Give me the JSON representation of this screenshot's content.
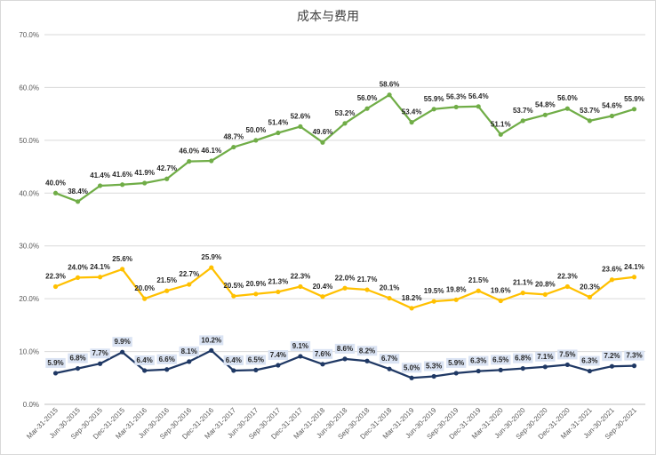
{
  "chart_data": {
    "type": "line",
    "title": "成本与费用",
    "xlabel": "",
    "ylabel": "",
    "ylim": [
      0,
      70
    ],
    "y_ticks": [
      "0.0%",
      "10.0%",
      "20.0%",
      "30.0%",
      "40.0%",
      "50.0%",
      "60.0%",
      "70.0%"
    ],
    "grid": true,
    "legend": "none",
    "categories": [
      "Mar-31-2015",
      "Jun-30-2015",
      "Sep-30-2015",
      "Dec-31-2015",
      "Mar-31-2016",
      "Jun-30-2016",
      "Sep-30-2016",
      "Dec-31-2016",
      "Mar-31-2017",
      "Jun-30-2017",
      "Sep-30-2017",
      "Dec-31-2017",
      "Mar-31-2018",
      "Jun-30-2018",
      "Sep-30-2018",
      "Dec-31-2018",
      "Mar-31-2019",
      "Jun-30-2019",
      "Sep-30-2019",
      "Dec-31-2019",
      "Mar-31-2020",
      "Jun-30-2020",
      "Sep-30-2020",
      "Dec-31-2020",
      "Mar-31-2021",
      "Jun-30-2021",
      "Sep-30-2021"
    ],
    "series": [
      {
        "color": "#70ad47",
        "values": [
          40.0,
          38.4,
          41.4,
          41.6,
          41.9,
          42.7,
          46.0,
          46.1,
          48.7,
          50.0,
          51.4,
          52.6,
          49.6,
          53.2,
          56.0,
          58.6,
          53.4,
          55.9,
          56.3,
          56.4,
          51.1,
          53.7,
          54.8,
          56.0,
          53.7,
          54.6,
          55.9
        ],
        "labels": [
          "40.0%",
          "38.4%",
          "41.4%",
          "41.6%",
          "41.9%",
          "42.7%",
          "46.0%",
          "46.1%",
          "48.7%",
          "50.0%",
          "51.4%",
          "52.6%",
          "49.6%",
          "53.2%",
          "56.0%",
          "58.6%",
          "53.4%",
          "55.9%",
          "56.3%",
          "56.4%",
          "51.1%",
          "53.7%",
          "54.8%",
          "56.0%",
          "53.7%",
          "54.6%",
          "55.9%"
        ]
      },
      {
        "color": "#ffc000",
        "values": [
          22.3,
          24.0,
          24.1,
          25.6,
          20.0,
          21.5,
          22.7,
          25.9,
          20.5,
          20.9,
          21.3,
          22.3,
          20.4,
          22.0,
          21.7,
          20.1,
          18.2,
          19.5,
          19.8,
          21.5,
          19.6,
          21.1,
          20.8,
          22.3,
          20.3,
          23.6,
          24.1
        ],
        "labels": [
          "22.3%",
          "24.0%",
          "24.1%",
          "25.6%",
          "20.0%",
          "21.5%",
          "22.7%",
          "25.9%",
          "20.5%",
          "20.9%",
          "21.3%",
          "22.3%",
          "20.4%",
          "22.0%",
          "21.7%",
          "20.1%",
          "18.2%",
          "19.5%",
          "19.8%",
          "21.5%",
          "19.6%",
          "21.1%",
          "20.8%",
          "22.3%",
          "20.3%",
          "23.6%",
          "24.1%"
        ]
      },
      {
        "color": "#1f3864",
        "label_bg": "#dae3f3",
        "values": [
          5.9,
          6.8,
          7.7,
          9.9,
          6.4,
          6.6,
          8.1,
          10.2,
          6.4,
          6.5,
          7.4,
          9.1,
          7.6,
          8.6,
          8.2,
          6.7,
          5.0,
          5.3,
          5.9,
          6.3,
          6.5,
          6.8,
          7.1,
          7.5,
          6.3,
          7.2,
          7.3
        ],
        "labels": [
          "5.9%",
          "6.8%",
          "7.7%",
          "9.9%",
          "6.4%",
          "6.6%",
          "8.1%",
          "10.2%",
          "6.4%",
          "6.5%",
          "7.4%",
          "9.1%",
          "7.6%",
          "8.6%",
          "8.2%",
          "6.7%",
          "5.0%",
          "5.3%",
          "5.9%",
          "6.3%",
          "6.5%",
          "6.8%",
          "7.1%",
          "7.5%",
          "6.3%",
          "7.2%",
          "7.3%"
        ]
      }
    ]
  }
}
